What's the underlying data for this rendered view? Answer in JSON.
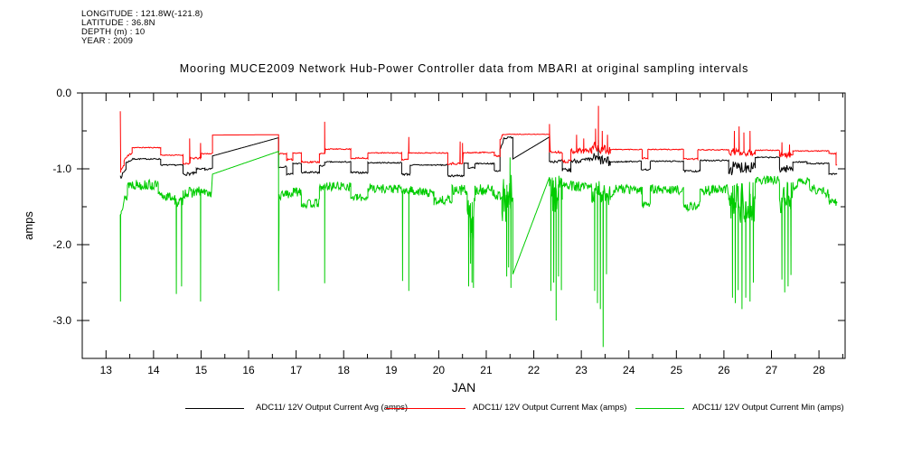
{
  "header": {
    "lines": [
      "LONGITUDE : 121.8W(-121.8)",
      "LATITUDE : 36.8N",
      "DEPTH (m) : 10",
      "YEAR : 2009"
    ]
  },
  "title": "Mooring MUCE2009 Network Hub-Power Controller data from MBARI at original sampling intervals",
  "chart_data": {
    "type": "line",
    "title": "Mooring MUCE2009 Network Hub-Power Controller data from MBARI at original sampling intervals",
    "xlabel": "JAN",
    "ylabel": "amps",
    "xlim": [
      12.5,
      28.55
    ],
    "ylim": [
      -3.5,
      0.0
    ],
    "grid": false,
    "legend_position": "bottom",
    "xticks_major": [
      13,
      14,
      15,
      16,
      17,
      18,
      19,
      20,
      21,
      22,
      23,
      24,
      25,
      26,
      27,
      28
    ],
    "xtick_labels": [
      "13",
      "14",
      "15",
      "16",
      "17",
      "18",
      "19",
      "20",
      "21",
      "22",
      "23",
      "24",
      "25",
      "26",
      "27",
      "28"
    ],
    "xtick_minor_interval": 0.5,
    "yticks_major": [
      0.0,
      -1.0,
      -2.0,
      -3.0
    ],
    "ytick_labels": [
      "0.0",
      "-1.0",
      "-2.0",
      "-3.0"
    ],
    "ytick_minor_interval": 0.5,
    "axis_color": "#000000",
    "series": [
      {
        "id": "avg",
        "name": "ADC11/ 12V Output Current Avg (amps)",
        "color": "#000000",
        "step": 0.016,
        "segments": [
          [
            13.3,
            -1.09,
            13.32,
            -1.13,
            0
          ],
          [
            13.32,
            -1.1,
            13.42,
            -1.0,
            0.02
          ],
          [
            13.42,
            -0.92,
            13.55,
            -0.88,
            0.012
          ],
          [
            13.55,
            -0.87,
            14.15,
            -0.87,
            0.008
          ],
          [
            14.15,
            -0.95,
            14.62,
            -0.95,
            0.008
          ],
          [
            14.62,
            -1.07,
            14.9,
            -1.06,
            0.02
          ],
          [
            14.9,
            -1.0,
            15.08,
            -1.0,
            0.01
          ],
          [
            15.08,
            -1.02,
            15.24,
            -0.99,
            0.01
          ],
          [
            15.24,
            -0.83,
            16.63,
            -0.59,
            0
          ],
          [
            16.63,
            -0.98,
            16.8,
            -0.97,
            0.008
          ],
          [
            16.8,
            -1.07,
            16.93,
            -1.07,
            0.015
          ],
          [
            16.93,
            -0.93,
            17.11,
            -0.93,
            0.008
          ],
          [
            17.11,
            -1.05,
            17.49,
            -1.05,
            0.015
          ],
          [
            17.49,
            -0.96,
            17.6,
            -0.96,
            0.01
          ],
          [
            17.6,
            -0.91,
            18.15,
            -0.91,
            0.008
          ],
          [
            18.15,
            -1.05,
            18.51,
            -1.05,
            0.012
          ],
          [
            18.51,
            -0.92,
            19.22,
            -0.92,
            0.008
          ],
          [
            19.22,
            -1.07,
            19.4,
            -1.07,
            0.015
          ],
          [
            19.4,
            -0.95,
            20.19,
            -0.95,
            0.008
          ],
          [
            20.19,
            -1.09,
            20.53,
            -1.09,
            0.015
          ],
          [
            20.53,
            -0.93,
            20.62,
            -0.93,
            0.01
          ],
          [
            20.62,
            -1.0,
            20.76,
            -1.0,
            0.03
          ],
          [
            20.76,
            -0.93,
            21.17,
            -0.93,
            0.008
          ],
          [
            21.17,
            -1.03,
            21.29,
            -1.03,
            0.012
          ],
          [
            21.29,
            -0.75,
            21.36,
            -0.62,
            0.02
          ],
          [
            21.36,
            -0.6,
            21.56,
            -0.58,
            0.012
          ],
          [
            21.56,
            -0.87,
            22.33,
            -0.58,
            0
          ],
          [
            22.33,
            -0.9,
            22.6,
            -0.9,
            0.02
          ],
          [
            22.6,
            -1.02,
            22.78,
            -1.02,
            0.03
          ],
          [
            22.78,
            -0.9,
            23.22,
            -0.88,
            0.03
          ],
          [
            23.22,
            -0.85,
            23.61,
            -0.92,
            0.07
          ],
          [
            23.61,
            -0.91,
            24.26,
            -0.9,
            0.008
          ],
          [
            24.26,
            -1.01,
            24.45,
            -1.01,
            0.01
          ],
          [
            24.45,
            -0.9,
            25.15,
            -0.9,
            0.008
          ],
          [
            25.15,
            -1.03,
            25.5,
            -1.03,
            0.012
          ],
          [
            25.5,
            -0.89,
            26.1,
            -0.89,
            0.008
          ],
          [
            26.1,
            -1.0,
            26.66,
            -0.95,
            0.09
          ],
          [
            26.66,
            -0.85,
            27.17,
            -0.85,
            0.008
          ],
          [
            27.17,
            -1.0,
            27.45,
            -1.0,
            0.05
          ],
          [
            27.45,
            -0.91,
            27.75,
            -0.91,
            0.008
          ],
          [
            27.75,
            -0.93,
            28.21,
            -0.93,
            0.008
          ],
          [
            28.21,
            -1.07,
            28.38,
            -1.07,
            0.01
          ]
        ],
        "spikes": [
          [
            23.36,
            -0.62
          ]
        ]
      },
      {
        "id": "max",
        "name": "ADC11/ 12V Output Current Max (amps)",
        "color": "#ff0000",
        "step": 0.016,
        "segments": [
          [
            13.3,
            -0.24,
            13.31,
            -1.05,
            0
          ],
          [
            13.31,
            -1.02,
            13.38,
            -0.96,
            0.02
          ],
          [
            13.38,
            -0.88,
            13.55,
            -0.78,
            0.02
          ],
          [
            13.55,
            -0.72,
            14.15,
            -0.72,
            0.006
          ],
          [
            14.15,
            -0.82,
            14.62,
            -0.82,
            0.006
          ],
          [
            14.62,
            -0.93,
            14.76,
            -0.93,
            0.012
          ],
          [
            14.76,
            -0.86,
            15.0,
            -0.86,
            0.012
          ],
          [
            15.0,
            -0.8,
            15.24,
            -0.8,
            0.008
          ],
          [
            15.24,
            -0.555,
            16.63,
            -0.55,
            0
          ],
          [
            16.63,
            -0.8,
            16.8,
            -0.8,
            0.008
          ],
          [
            16.8,
            -0.88,
            16.93,
            -0.88,
            0.012
          ],
          [
            16.93,
            -0.79,
            17.11,
            -0.79,
            0.008
          ],
          [
            17.11,
            -0.91,
            17.49,
            -0.91,
            0.012
          ],
          [
            17.49,
            -0.8,
            17.6,
            -0.8,
            0.008
          ],
          [
            17.6,
            -0.74,
            18.15,
            -0.74,
            0.006
          ],
          [
            18.15,
            -0.86,
            18.51,
            -0.86,
            0.01
          ],
          [
            18.51,
            -0.79,
            19.22,
            -0.79,
            0.006
          ],
          [
            19.22,
            -0.88,
            19.36,
            -0.88,
            0.012
          ],
          [
            19.36,
            -0.79,
            20.19,
            -0.79,
            0.006
          ],
          [
            20.19,
            -0.93,
            20.5,
            -0.93,
            0.015
          ],
          [
            20.5,
            -0.79,
            21.17,
            -0.78,
            0.008
          ],
          [
            21.17,
            -0.83,
            21.29,
            -0.83,
            0.012
          ],
          [
            21.29,
            -0.62,
            21.35,
            -0.54,
            0.02
          ],
          [
            21.35,
            -0.545,
            22.33,
            -0.545,
            0.004
          ],
          [
            22.33,
            -0.78,
            22.6,
            -0.78,
            0.015
          ],
          [
            22.6,
            -0.9,
            22.78,
            -0.9,
            0.02
          ],
          [
            22.78,
            -0.76,
            23.22,
            -0.76,
            0.04
          ],
          [
            23.22,
            -0.7,
            23.61,
            -0.76,
            0.07
          ],
          [
            23.61,
            -0.745,
            24.28,
            -0.745,
            0.006
          ],
          [
            24.28,
            -0.86,
            24.4,
            -0.86,
            0.01
          ],
          [
            24.4,
            -0.745,
            25.15,
            -0.745,
            0.006
          ],
          [
            25.15,
            -0.87,
            25.45,
            -0.87,
            0.01
          ],
          [
            25.45,
            -0.75,
            26.1,
            -0.75,
            0.006
          ],
          [
            26.1,
            -0.78,
            26.66,
            -0.78,
            0.05
          ],
          [
            26.66,
            -0.755,
            27.17,
            -0.755,
            0.006
          ],
          [
            27.17,
            -0.82,
            27.45,
            -0.82,
            0.03
          ],
          [
            27.45,
            -0.765,
            28.21,
            -0.765,
            0.006
          ],
          [
            28.21,
            -0.8,
            28.36,
            -0.8,
            0.008
          ],
          [
            28.36,
            -0.95,
            28.38,
            -0.95,
            0
          ]
        ],
        "spikes": [
          [
            14.76,
            -0.6
          ],
          [
            14.99,
            -0.66
          ],
          [
            17.6,
            -0.38
          ],
          [
            19.37,
            -0.58
          ],
          [
            20.45,
            -0.64
          ],
          [
            20.5,
            -0.66
          ],
          [
            22.33,
            -0.41
          ],
          [
            22.9,
            -0.55
          ],
          [
            23.05,
            -0.6
          ],
          [
            23.3,
            -0.47
          ],
          [
            23.36,
            -0.17
          ],
          [
            23.44,
            -0.5
          ],
          [
            23.55,
            -0.55
          ],
          [
            26.22,
            -0.5
          ],
          [
            26.32,
            -0.44
          ],
          [
            26.42,
            -0.52
          ],
          [
            26.55,
            -0.5
          ],
          [
            27.22,
            -0.65
          ],
          [
            27.38,
            -0.68
          ]
        ]
      },
      {
        "id": "min",
        "name": "ADC11/ 12V Output Current Min (amps)",
        "color": "#00cc00",
        "step": 0.012,
        "segments": [
          [
            13.3,
            -1.62,
            13.32,
            -1.55,
            0.05
          ],
          [
            13.32,
            -1.5,
            13.45,
            -1.35,
            0.07
          ],
          [
            13.45,
            -1.2,
            14.1,
            -1.22,
            0.07
          ],
          [
            14.1,
            -1.35,
            14.45,
            -1.38,
            0.06
          ],
          [
            14.45,
            -1.45,
            14.62,
            -1.42,
            0.06
          ],
          [
            14.62,
            -1.32,
            15.0,
            -1.3,
            0.07
          ],
          [
            15.0,
            -1.3,
            15.22,
            -1.33,
            0.05
          ],
          [
            15.24,
            -1.07,
            16.63,
            -0.77,
            0
          ],
          [
            16.63,
            -2.61,
            16.64,
            -1.74,
            0
          ],
          [
            16.64,
            -1.38,
            16.8,
            -1.3,
            0.06
          ],
          [
            16.8,
            -1.35,
            17.11,
            -1.28,
            0.07
          ],
          [
            17.11,
            -1.47,
            17.49,
            -1.45,
            0.06
          ],
          [
            17.49,
            -1.25,
            17.6,
            -1.25,
            0.05
          ],
          [
            17.6,
            -1.23,
            18.15,
            -1.23,
            0.06
          ],
          [
            18.15,
            -1.38,
            18.51,
            -1.38,
            0.05
          ],
          [
            18.51,
            -1.25,
            19.22,
            -1.27,
            0.06
          ],
          [
            19.22,
            -1.3,
            19.37,
            -1.3,
            0.05
          ],
          [
            19.37,
            -1.28,
            19.9,
            -1.33,
            0.06
          ],
          [
            19.9,
            -1.42,
            20.28,
            -1.4,
            0.06
          ],
          [
            20.28,
            -1.28,
            20.6,
            -1.28,
            0.07
          ],
          [
            20.6,
            -1.65,
            20.76,
            -1.65,
            0.3
          ],
          [
            20.76,
            -1.28,
            21.17,
            -1.28,
            0.08
          ],
          [
            21.17,
            -1.35,
            21.33,
            -1.35,
            0.06
          ],
          [
            21.33,
            -1.45,
            21.56,
            -1.35,
            0.3
          ],
          [
            21.56,
            -2.39,
            22.33,
            -1.11,
            0
          ],
          [
            22.33,
            -1.35,
            22.6,
            -1.25,
            0.28
          ],
          [
            22.6,
            -1.22,
            23.22,
            -1.25,
            0.07
          ],
          [
            23.22,
            -1.32,
            23.61,
            -1.32,
            0.16
          ],
          [
            23.61,
            -1.36,
            23.68,
            -1.36,
            0.03
          ],
          [
            23.68,
            -1.26,
            24.28,
            -1.28,
            0.06
          ],
          [
            24.28,
            -1.47,
            24.45,
            -1.45,
            0.05
          ],
          [
            24.45,
            -1.27,
            25.15,
            -1.28,
            0.06
          ],
          [
            25.15,
            -1.51,
            25.5,
            -1.48,
            0.06
          ],
          [
            25.5,
            -1.28,
            26.1,
            -1.28,
            0.07
          ],
          [
            26.1,
            -1.45,
            26.66,
            -1.42,
            0.28
          ],
          [
            26.66,
            -1.15,
            27.17,
            -1.15,
            0.06
          ],
          [
            27.17,
            -1.38,
            27.45,
            -1.38,
            0.22
          ],
          [
            27.45,
            -1.22,
            27.8,
            -1.15,
            0.06
          ],
          [
            27.8,
            -1.25,
            28.21,
            -1.33,
            0.06
          ],
          [
            28.21,
            -1.42,
            28.38,
            -1.45,
            0.05
          ]
        ],
        "spikes": [
          [
            13.305,
            -2.75
          ],
          [
            14.48,
            -2.65
          ],
          [
            14.59,
            -2.55
          ],
          [
            14.99,
            -2.75
          ],
          [
            17.6,
            -2.51
          ],
          [
            19.24,
            -2.48
          ],
          [
            19.37,
            -2.61
          ],
          [
            20.63,
            -2.55
          ],
          [
            20.67,
            -2.25
          ],
          [
            20.7,
            -2.5
          ],
          [
            20.73,
            -2.57
          ],
          [
            21.43,
            -2.42
          ],
          [
            21.47,
            -2.3
          ],
          [
            21.52,
            -2.57
          ],
          [
            21.5,
            -0.85
          ],
          [
            22.36,
            -2.61
          ],
          [
            22.42,
            -2.5
          ],
          [
            22.47,
            -3.0
          ],
          [
            22.52,
            -2.42
          ],
          [
            22.58,
            -2.6
          ],
          [
            23.28,
            -2.61
          ],
          [
            23.34,
            -2.77
          ],
          [
            23.4,
            -2.85
          ],
          [
            23.46,
            -3.35
          ],
          [
            23.53,
            -2.39
          ],
          [
            26.18,
            -2.7
          ],
          [
            26.24,
            -2.77
          ],
          [
            26.3,
            -2.6
          ],
          [
            26.38,
            -2.85
          ],
          [
            26.46,
            -2.7
          ],
          [
            26.55,
            -2.75
          ],
          [
            26.62,
            -2.5
          ],
          [
            27.22,
            -2.46
          ],
          [
            27.28,
            -2.63
          ],
          [
            27.35,
            -2.55
          ],
          [
            27.41,
            -2.4
          ]
        ]
      }
    ]
  }
}
